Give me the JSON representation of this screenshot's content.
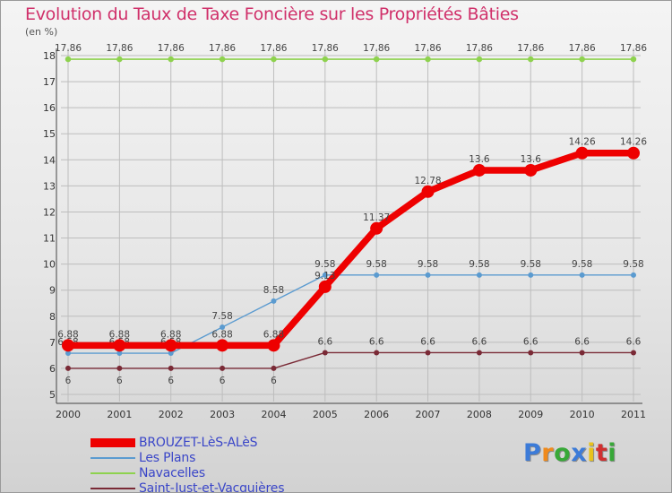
{
  "title": "Evolution du Taux de Taxe Foncière sur les Propriétés Bâties",
  "unit_label": "(en %)",
  "logo": {
    "text": "Proxiti",
    "colors": [
      "#3c7bd8",
      "#f08a1c",
      "#38a838",
      "#3c7bd8",
      "#e8c21c",
      "#d03030",
      "#38a838"
    ]
  },
  "chart_data": {
    "type": "line",
    "title": "Evolution du Taux de Taxe Foncière sur les Propriétés Bâties",
    "xlabel": "",
    "ylabel": "(en %)",
    "ylim": [
      5,
      18
    ],
    "yticks": [
      "5",
      "6",
      "7",
      "8",
      "9",
      "10",
      "11",
      "12",
      "13",
      "14",
      "15",
      "16",
      "17",
      "18"
    ],
    "categories": [
      "2000",
      "2001",
      "2002",
      "2003",
      "2004",
      "2005",
      "2006",
      "2007",
      "2008",
      "2009",
      "2010",
      "2011"
    ],
    "grid": true,
    "series": [
      {
        "name": "Navacelles",
        "color": "#8ed24e",
        "values": [
          17.86,
          17.86,
          17.86,
          17.86,
          17.86,
          17.86,
          17.86,
          17.86,
          17.86,
          17.86,
          17.86,
          17.86
        ],
        "labels": [
          "17.86",
          "17.86",
          "17.86",
          "17.86",
          "17.86",
          "17.86",
          "17.86",
          "17.86",
          "17.86",
          "17.86",
          "17.86",
          "17.86"
        ]
      },
      {
        "name": "Saint-Just-et-Vacquières",
        "color": "#7a2a36",
        "values": [
          6,
          6,
          6,
          6,
          6,
          6.6,
          6.6,
          6.6,
          6.6,
          6.6,
          6.6,
          6.6
        ],
        "labels": [
          "6",
          "6",
          "6",
          "6",
          "6",
          "6.6",
          "6.6",
          "6.6",
          "6.6",
          "6.6",
          "6.6",
          "6.6"
        ]
      },
      {
        "name": "Les Plans",
        "color": "#5b9bd0",
        "values": [
          6.58,
          6.58,
          6.58,
          7.58,
          8.58,
          9.58,
          9.58,
          9.58,
          9.58,
          9.58,
          9.58,
          9.58
        ],
        "labels": [
          "6.58",
          "6.58",
          "6.58",
          "7.58",
          "8.58",
          "9.58",
          "9.58",
          "9.58",
          "9.58",
          "9.58",
          "9.58",
          "9.58"
        ]
      },
      {
        "name": "BROUZET-LèS-ALèS",
        "color": "#ee0000",
        "values": [
          6.88,
          6.88,
          6.88,
          6.88,
          6.88,
          9.13,
          11.37,
          12.78,
          13.6,
          13.6,
          14.26,
          14.26
        ],
        "labels": [
          "6.88",
          "6.88",
          "6.88",
          "6.88",
          "6.88",
          "9.13",
          "11.37",
          "12.78",
          "13.6",
          "13.6",
          "14.26",
          "14.26"
        ]
      }
    ],
    "legend": [
      {
        "name": "BROUZET-LèS-ALèS",
        "color": "#ee0000"
      },
      {
        "name": "Les Plans",
        "color": "#5b9bd0"
      },
      {
        "name": "Navacelles",
        "color": "#8ed24e"
      },
      {
        "name": "Saint-Just-et-Vacquières",
        "color": "#7a2a36"
      }
    ],
    "legend_position": "bottom-left"
  }
}
